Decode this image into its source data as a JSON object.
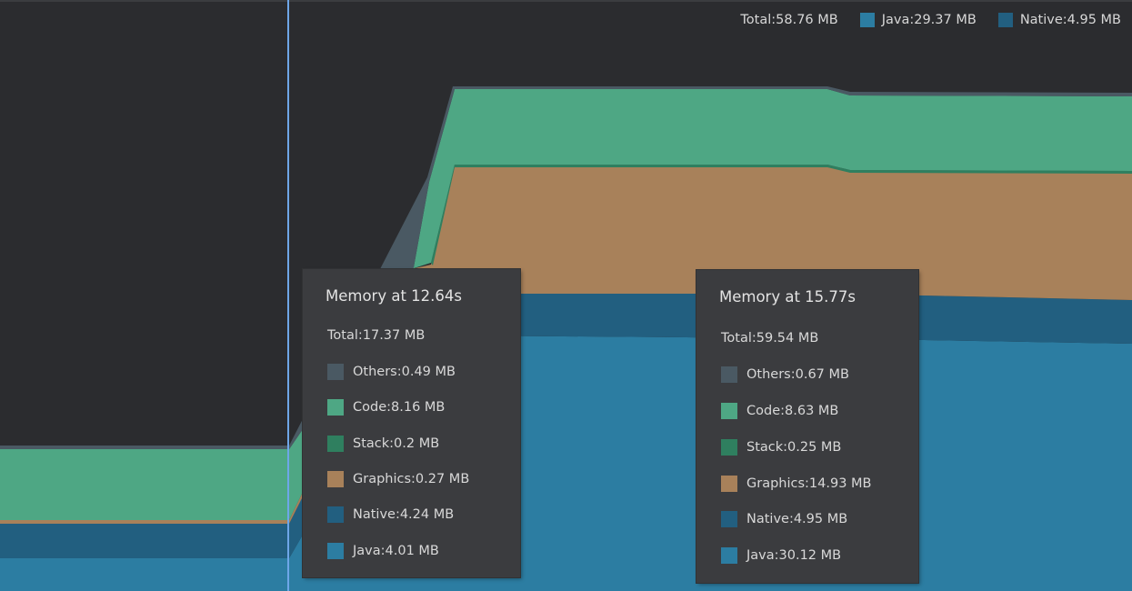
{
  "colors": {
    "background": "#2b2c2f",
    "others": "#4a5963",
    "code": "#4ea784",
    "stack": "#2f7f5f",
    "graphics": "#a8815a",
    "native": "#225f80",
    "java": "#2c7da2",
    "cursor": "#6ea6e8",
    "tooltip_bg": "#3b3c3f"
  },
  "legend": {
    "total": "Total:58.76 MB",
    "java": "Java:29.37 MB",
    "native": "Native:4.95 MB"
  },
  "tooltips": [
    {
      "title": "Memory at 12.64s",
      "total": "Total:17.37 MB",
      "rows": [
        {
          "key": "others",
          "label": "Others:0.49 MB"
        },
        {
          "key": "code",
          "label": "Code:8.16 MB"
        },
        {
          "key": "stack",
          "label": "Stack:0.2 MB"
        },
        {
          "key": "graphics",
          "label": "Graphics:0.27 MB"
        },
        {
          "key": "native",
          "label": "Native:4.24 MB"
        },
        {
          "key": "java",
          "label": "Java:4.01 MB"
        }
      ]
    },
    {
      "title": "Memory at 15.77s",
      "total": "Total:59.54 MB",
      "rows": [
        {
          "key": "others",
          "label": "Others:0.67 MB"
        },
        {
          "key": "code",
          "label": "Code:8.63 MB"
        },
        {
          "key": "stack",
          "label": "Stack:0.25 MB"
        },
        {
          "key": "graphics",
          "label": "Graphics:14.93 MB"
        },
        {
          "key": "native",
          "label": "Native:4.95 MB"
        },
        {
          "key": "java",
          "label": "Java:30.12 MB"
        }
      ]
    }
  ],
  "chart_data": {
    "type": "area",
    "stacked": true,
    "series_order": [
      "java",
      "native",
      "graphics",
      "stack",
      "code",
      "others"
    ],
    "series": [
      {
        "name": "Java",
        "key": "java"
      },
      {
        "name": "Native",
        "key": "native"
      },
      {
        "name": "Graphics",
        "key": "graphics"
      },
      {
        "name": "Stack",
        "key": "stack"
      },
      {
        "name": "Code",
        "key": "code"
      },
      {
        "name": "Others",
        "key": "others"
      }
    ]
  }
}
